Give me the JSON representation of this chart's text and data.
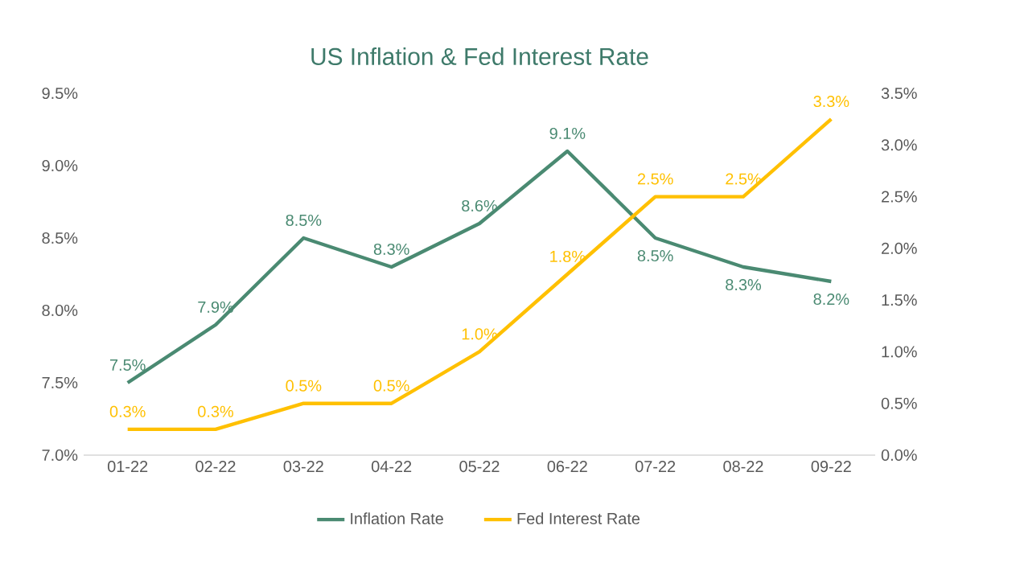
{
  "chart_data": {
    "type": "line",
    "title": "US Inflation & Fed Interest Rate",
    "categories": [
      "01-22",
      "02-22",
      "03-22",
      "04-22",
      "05-22",
      "06-22",
      "07-22",
      "08-22",
      "09-22"
    ],
    "series": [
      {
        "name": "Inflation Rate",
        "color": "#4a8a72",
        "values": [
          7.5,
          7.9,
          8.5,
          8.3,
          8.6,
          9.1,
          8.5,
          8.3,
          8.2
        ],
        "value_labels": [
          "7.5%",
          "7.9%",
          "8.5%",
          "8.3%",
          "8.6%",
          "9.1%",
          "8.5%",
          "8.3%",
          "8.2%"
        ]
      },
      {
        "name": "Fed Interest Rate",
        "color": "#ffc000",
        "axis": "y2",
        "values": [
          0.25,
          0.25,
          0.5,
          0.5,
          1.0,
          1.75,
          2.5,
          2.5,
          3.25
        ],
        "value_labels": [
          "0.3%",
          "0.3%",
          "0.5%",
          "0.5%",
          "1.0%",
          "1.8%",
          "2.5%",
          "2.5%",
          "3.3%"
        ]
      }
    ],
    "ylim": [
      7.0,
      9.5
    ],
    "yticks": [
      {
        "value": 7.0,
        "label": "7.0%"
      },
      {
        "value": 7.5,
        "label": "7.5%"
      },
      {
        "value": 8.0,
        "label": "8.0%"
      },
      {
        "value": 8.5,
        "label": "8.5%"
      },
      {
        "value": 9.0,
        "label": "9.0%"
      },
      {
        "value": 9.5,
        "label": "9.5%"
      }
    ],
    "y2lim": [
      0,
      3.5
    ],
    "y2ticks": [
      {
        "value": 0,
        "label": "0.0%"
      },
      {
        "value": 0.5,
        "label": "0.5%"
      },
      {
        "value": 1.0,
        "label": "1.0%"
      },
      {
        "value": 1.5,
        "label": "1.5%"
      },
      {
        "value": 2.0,
        "label": "2.0%"
      },
      {
        "value": 2.5,
        "label": "2.5%"
      },
      {
        "value": 3.0,
        "label": "3.0%"
      },
      {
        "value": 3.5,
        "label": "3.5%"
      }
    ],
    "grid": false,
    "legend": "bottom",
    "marker": "none",
    "line_style": "solid"
  }
}
